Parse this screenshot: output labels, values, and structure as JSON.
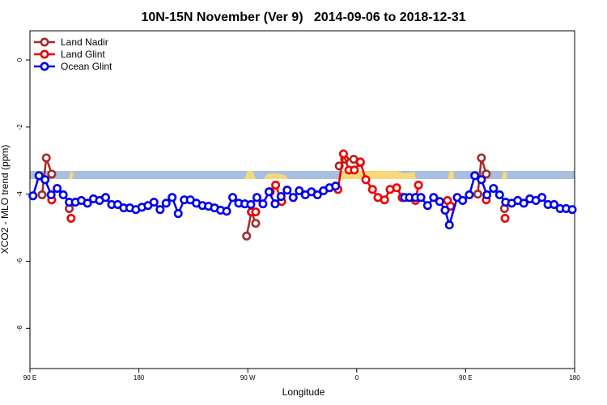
{
  "chart_data": {
    "type": "line",
    "title": "10N-15N November (Ver 9)   2014-09-06 to 2018-12-31",
    "x_label": "Longitude",
    "y_label": "XCO2 - MLO trend (ppm)",
    "xlim": [
      90,
      540
    ],
    "ylim": [
      -9.2,
      0.87
    ],
    "xticks": [
      {
        "value": 90,
        "label": "90 E"
      },
      180,
      {
        "value": 270,
        "label": "90 W"
      },
      {
        "value": 360,
        "label": "0"
      },
      {
        "value": 450,
        "label": "90 E"
      },
      {
        "value": 540,
        "label": "180"
      }
    ],
    "yticks": [
      0,
      -2,
      -4,
      -6,
      -8
    ],
    "legend": "top-left",
    "series": [
      {
        "name": "Land Nadir",
        "color": "#a52a2a",
        "x": [
          100,
          103.5,
          108,
          115,
          122.5,
          200,
          269,
          273,
          276.5,
          310,
          345.5,
          350,
          357.5,
          363,
          420,
          460,
          463,
          467,
          475,
          482
        ],
        "values": [
          -4.02,
          -2.92,
          -3.4,
          null,
          -4.43,
          null,
          -5.25,
          -4.53,
          -4.87,
          null,
          -3.16,
          -2.96,
          -2.96,
          -3.06,
          null,
          -4.0,
          -2.92,
          -3.4,
          null,
          -4.43
        ]
      },
      {
        "name": "Land Glint",
        "color": "#ee0000",
        "x": [
          108,
          115,
          124,
          200,
          273,
          276.5,
          280,
          288.5,
          293,
          298,
          320,
          344.5,
          349,
          353.5,
          358,
          363,
          367.5,
          373,
          377.5,
          383,
          387.5,
          393,
          397.5,
          403,
          408.5,
          411,
          420,
          435,
          437.5,
          450,
          467,
          475,
          482.5
        ],
        "values": [
          -4.17,
          null,
          -4.72,
          null,
          -4.53,
          -4.53,
          null,
          -3.93,
          -3.73,
          -4.22,
          null,
          -3.86,
          -2.8,
          -3.28,
          -3.28,
          -3.04,
          -3.57,
          -3.86,
          -4.1,
          -4.17,
          -3.86,
          -3.81,
          -4.1,
          null,
          -4.19,
          -3.73,
          null,
          -4.19,
          -4.36,
          null,
          -4.17,
          null,
          -4.72
        ]
      },
      {
        "name": "Ocean Glint",
        "color": "#0000ee",
        "x": [
          92.5,
          97.5,
          102.5,
          107.5,
          112.5,
          117.5,
          122.5,
          127.5,
          132.5,
          137.5,
          142.5,
          147.5,
          152.5,
          157.5,
          162.5,
          167.5,
          172.5,
          177.5,
          182.5,
          187.5,
          192.5,
          197.5,
          202.5,
          207.5,
          212.5,
          217.5,
          222.5,
          227.5,
          232.5,
          237.5,
          242.5,
          247.5,
          252.5,
          257.5,
          262.5,
          267.5,
          272.5,
          277.5,
          282.5,
          287.5,
          292.5,
          297.5,
          302.5,
          307.5,
          312.5,
          317.5,
          322.5,
          327.5,
          332.5,
          337.5,
          342.5,
          370,
          399.5,
          403.5,
          408.5,
          413,
          418.5,
          423.5,
          428.5,
          433,
          436.5,
          443,
          447.5,
          453,
          457.5,
          463,
          467.5,
          473,
          478,
          483,
          488,
          493,
          498,
          503,
          508,
          513,
          518,
          523,
          528,
          533,
          538
        ],
        "values": [
          -4.05,
          -3.45,
          -3.57,
          -4.02,
          -3.83,
          -4.02,
          -4.24,
          -4.24,
          -4.19,
          -4.27,
          -4.14,
          -4.19,
          -4.1,
          -4.31,
          -4.31,
          -4.41,
          -4.41,
          -4.46,
          -4.39,
          -4.34,
          -4.24,
          -4.46,
          -4.27,
          -4.1,
          -4.58,
          -4.17,
          -4.17,
          -4.27,
          -4.34,
          -4.36,
          -4.41,
          -4.48,
          -4.51,
          -4.1,
          -4.27,
          -4.29,
          -4.31,
          -4.1,
          -4.29,
          -3.93,
          -4.29,
          -4.07,
          -3.88,
          -4.1,
          -3.9,
          -4.02,
          -3.93,
          -4.02,
          -3.9,
          -3.81,
          -3.76,
          null,
          -4.1,
          -4.1,
          -4.1,
          -4.1,
          -4.34,
          -4.1,
          -4.22,
          -4.48,
          -4.92,
          -4.1,
          -4.19,
          -4.02,
          -3.45,
          -3.57,
          -4.02,
          -3.83,
          -4.02,
          -4.24,
          -4.27,
          -4.19,
          -4.27,
          -4.14,
          -4.19,
          -4.1,
          -4.31,
          -4.31,
          -4.43,
          -4.43,
          -4.46
        ]
      }
    ]
  }
}
